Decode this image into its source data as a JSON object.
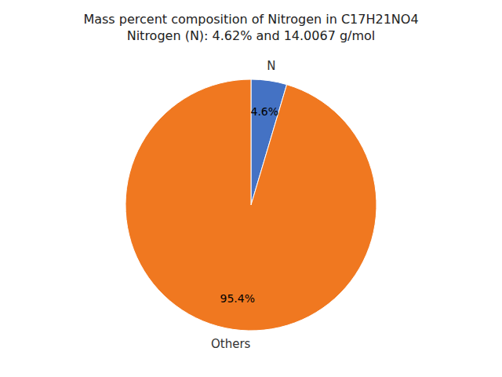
{
  "chart_data": {
    "type": "pie",
    "title": "Mass percent composition of Nitrogen in C17H21NO4",
    "subtitle": "Nitrogen (N): 4.62% and 14.0067 g/mol",
    "categories": [
      "N",
      "Others"
    ],
    "values": [
      4.6,
      95.4
    ],
    "value_labels": [
      "4.6%",
      "95.4%"
    ],
    "colors": [
      "#4472c4",
      "#f07820"
    ],
    "data_labels": true
  }
}
